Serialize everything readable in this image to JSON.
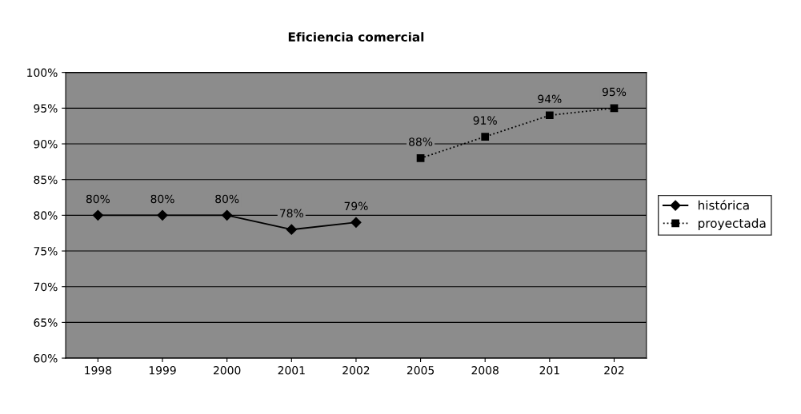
{
  "chart_data": {
    "type": "line",
    "title": "Eficiencia comercial",
    "categories": [
      "1998",
      "1999",
      "2000",
      "2001",
      "2002",
      "2005",
      "2008",
      "201",
      "202"
    ],
    "series": [
      {
        "name": "histórica",
        "color": "#000000",
        "marker": "diamond",
        "line_style": "solid",
        "values": [
          80,
          80,
          80,
          78,
          79,
          null,
          null,
          null,
          null
        ],
        "value_labels": [
          "80%",
          "80%",
          "80%",
          "78%",
          "79%",
          null,
          null,
          null,
          null
        ]
      },
      {
        "name": "proyectada",
        "color": "#000000",
        "marker": "square",
        "line_style": "dotted",
        "values": [
          null,
          null,
          null,
          null,
          null,
          88,
          91,
          94,
          95
        ],
        "value_labels": [
          null,
          null,
          null,
          null,
          null,
          "88%",
          "91%",
          "94%",
          "95%"
        ]
      }
    ],
    "ylim": [
      60,
      100
    ],
    "yticks": [
      {
        "value": 60,
        "label": "60%"
      },
      {
        "value": 65,
        "label": "65%"
      },
      {
        "value": 70,
        "label": "70%"
      },
      {
        "value": 75,
        "label": "75%"
      },
      {
        "value": 80,
        "label": "80%"
      },
      {
        "value": 85,
        "label": "85%"
      },
      {
        "value": 90,
        "label": "90%"
      },
      {
        "value": 95,
        "label": "95%"
      },
      {
        "value": 100,
        "label": "100%"
      }
    ],
    "grid": "y",
    "legend": "right"
  }
}
